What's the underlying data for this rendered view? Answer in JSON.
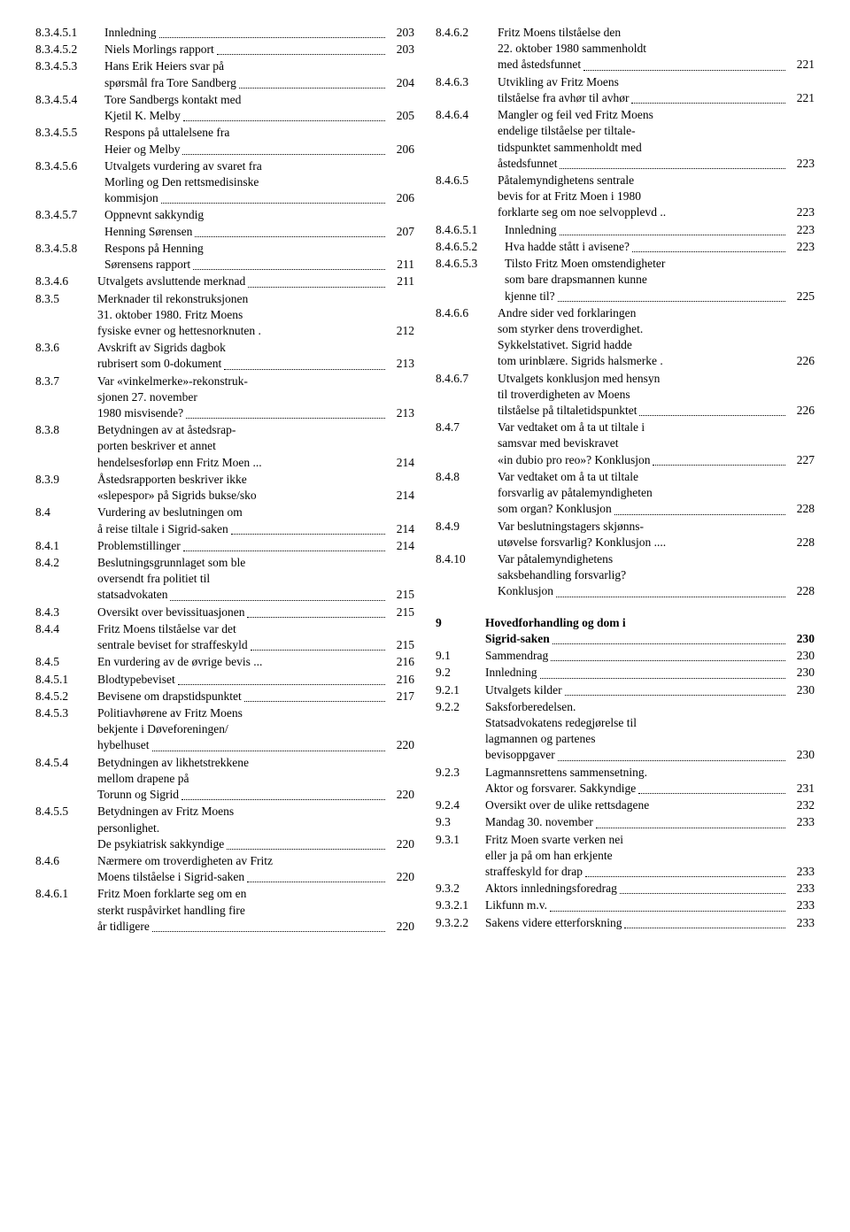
{
  "left": [
    {
      "num": "8.3.4.5.1",
      "lines": [
        {
          "t": "Innledning",
          "dots": true
        }
      ],
      "page": "203",
      "wide": true
    },
    {
      "num": "8.3.4.5.2",
      "lines": [
        {
          "t": "Niels Morlings rapport",
          "dots": true
        }
      ],
      "page": "203",
      "wide": true
    },
    {
      "num": "8.3.4.5.3",
      "lines": [
        {
          "t": "Hans Erik Heiers svar på",
          "dots": false
        },
        {
          "t": "spørsmål fra Tore Sandberg",
          "dots": true
        }
      ],
      "page": "204",
      "wide": true
    },
    {
      "num": "8.3.4.5.4",
      "lines": [
        {
          "t": "Tore Sandbergs kontakt med",
          "dots": false
        },
        {
          "t": "Kjetil K. Melby",
          "dots": true
        }
      ],
      "page": "205",
      "wide": true
    },
    {
      "num": "8.3.4.5.5",
      "lines": [
        {
          "t": "Respons på uttalelsene fra",
          "dots": false
        },
        {
          "t": "Heier og Melby",
          "dots": true
        }
      ],
      "page": "206",
      "wide": true
    },
    {
      "num": "8.3.4.5.6",
      "lines": [
        {
          "t": "Utvalgets vurdering av svaret fra",
          "dots": false
        },
        {
          "t": "Morling og Den rettsmedisinske",
          "dots": false
        },
        {
          "t": "kommisjon",
          "dots": true
        }
      ],
      "page": "206",
      "wide": true
    },
    {
      "num": "8.3.4.5.7",
      "lines": [
        {
          "t": "Oppnevnt sakkyndig",
          "dots": false
        },
        {
          "t": "Henning Sørensen",
          "dots": true
        }
      ],
      "page": "207",
      "wide": true
    },
    {
      "num": "8.3.4.5.8",
      "lines": [
        {
          "t": "Respons på Henning",
          "dots": false
        },
        {
          "t": "Sørensens rapport",
          "dots": true
        }
      ],
      "page": "211",
      "wide": true
    },
    {
      "num": "8.3.4.6",
      "lines": [
        {
          "t": "Utvalgets avsluttende merknad",
          "dots": true
        }
      ],
      "page": "211"
    },
    {
      "num": "8.3.5",
      "lines": [
        {
          "t": "Merknader til rekonstruksjonen",
          "dots": false
        },
        {
          "t": "31. oktober 1980. Fritz Moens",
          "dots": false
        },
        {
          "t": "fysiske evner og hettesnorknuten .",
          "dots": false
        }
      ],
      "page": "212"
    },
    {
      "num": "8.3.6",
      "lines": [
        {
          "t": "Avskrift av Sigrids dagbok",
          "dots": false
        },
        {
          "t": "rubrisert som 0-dokument",
          "dots": true
        }
      ],
      "page": "213"
    },
    {
      "num": "8.3.7",
      "lines": [
        {
          "t": "Var «vinkelmerke»-rekonstruk-",
          "dots": false
        },
        {
          "t": "sjonen 27. november",
          "dots": false
        },
        {
          "t": "1980 misvisende?",
          "dots": true
        }
      ],
      "page": "213"
    },
    {
      "num": "8.3.8",
      "lines": [
        {
          "t": "Betydningen av at åstedsrap-",
          "dots": false
        },
        {
          "t": "porten beskriver et annet",
          "dots": false
        },
        {
          "t": "hendelsesforløp enn Fritz Moen ...",
          "dots": false
        }
      ],
      "page": "214"
    },
    {
      "num": "8.3.9",
      "lines": [
        {
          "t": "Åstedsrapporten beskriver ikke",
          "dots": false
        },
        {
          "t": "«slepespor» på Sigrids bukse/sko",
          "dots": false
        }
      ],
      "page": "214"
    },
    {
      "num": "8.4",
      "lines": [
        {
          "t": "Vurdering av beslutningen om",
          "dots": false
        },
        {
          "t": "å reise tiltale i Sigrid-saken",
          "dots": true
        }
      ],
      "page": "214"
    },
    {
      "num": "8.4.1",
      "lines": [
        {
          "t": "Problemstillinger",
          "dots": true
        }
      ],
      "page": "214"
    },
    {
      "num": "8.4.2",
      "lines": [
        {
          "t": "Beslutningsgrunnlaget som ble",
          "dots": false
        },
        {
          "t": "oversendt fra politiet til",
          "dots": false
        },
        {
          "t": "statsadvokaten",
          "dots": true
        }
      ],
      "page": "215"
    },
    {
      "num": "8.4.3",
      "lines": [
        {
          "t": "Oversikt over bevissituasjonen",
          "dots": true
        }
      ],
      "page": "215"
    },
    {
      "num": "8.4.4",
      "lines": [
        {
          "t": "Fritz Moens tilståelse var det",
          "dots": false
        },
        {
          "t": "sentrale beviset for straffeskyld",
          "dots": true
        }
      ],
      "page": "215"
    },
    {
      "num": "8.4.5",
      "lines": [
        {
          "t": "En vurdering av de øvrige bevis  ...",
          "dots": false
        }
      ],
      "page": "216"
    },
    {
      "num": "8.4.5.1",
      "lines": [
        {
          "t": "Blodtypebeviset",
          "dots": true
        }
      ],
      "page": "216"
    },
    {
      "num": "8.4.5.2",
      "lines": [
        {
          "t": "Bevisene om drapstidspunktet",
          "dots": true
        }
      ],
      "page": "217"
    },
    {
      "num": "8.4.5.3",
      "lines": [
        {
          "t": "Politiavhørene av Fritz Moens",
          "dots": false
        },
        {
          "t": "bekjente i Døveforeningen/",
          "dots": false
        },
        {
          "t": "hybelhuset",
          "dots": true
        }
      ],
      "page": "220"
    },
    {
      "num": "8.4.5.4",
      "lines": [
        {
          "t": "Betydningen av likhetstrekkene",
          "dots": false
        },
        {
          "t": "mellom drapene på",
          "dots": false
        },
        {
          "t": "Torunn og Sigrid",
          "dots": true
        }
      ],
      "page": "220"
    },
    {
      "num": "8.4.5.5",
      "lines": [
        {
          "t": "Betydningen av Fritz Moens",
          "dots": false
        },
        {
          "t": "personlighet.",
          "dots": false
        },
        {
          "t": "De psykiatrisk sakkyndige",
          "dots": true
        }
      ],
      "page": "220"
    },
    {
      "num": "8.4.6",
      "lines": [
        {
          "t": "Nærmere om troverdigheten av Fritz",
          "dots": false
        },
        {
          "t": "Moens tilståelse i Sigrid-saken",
          "dots": true
        }
      ],
      "page": "220"
    },
    {
      "num": "8.4.6.1",
      "lines": [
        {
          "t": "Fritz Moen forklarte seg om en",
          "dots": false
        },
        {
          "t": "sterkt ruspåvirket handling fire",
          "dots": false
        },
        {
          "t": "år tidligere",
          "dots": true
        }
      ],
      "page": "220"
    }
  ],
  "right": [
    {
      "num": "8.4.6.2",
      "lines": [
        {
          "t": "Fritz Moens tilståelse den",
          "dots": false
        },
        {
          "t": "22. oktober 1980 sammenholdt",
          "dots": false
        },
        {
          "t": "med åstedsfunnet",
          "dots": true
        }
      ],
      "page": "221"
    },
    {
      "num": "8.4.6.3",
      "lines": [
        {
          "t": "Utvikling av Fritz Moens",
          "dots": false
        },
        {
          "t": "tilståelse fra avhør til avhør",
          "dots": true
        }
      ],
      "page": "221"
    },
    {
      "num": "8.4.6.4",
      "lines": [
        {
          "t": "Mangler og feil ved Fritz Moens",
          "dots": false
        },
        {
          "t": "endelige tilståelse per tiltale-",
          "dots": false
        },
        {
          "t": "tidspunktet sammenholdt med",
          "dots": false
        },
        {
          "t": "åstedsfunnet",
          "dots": true
        }
      ],
      "page": "223"
    },
    {
      "num": "8.4.6.5",
      "lines": [
        {
          "t": "Påtalemyndighetens sentrale",
          "dots": false
        },
        {
          "t": "bevis for at Fritz Moen i 1980",
          "dots": false
        },
        {
          "t": "forklarte seg om noe selvopplevd  ..",
          "dots": false
        }
      ],
      "page": "223"
    },
    {
      "num": "8.4.6.5.1",
      "lines": [
        {
          "t": "Innledning",
          "dots": true
        }
      ],
      "page": "223",
      "wide": true
    },
    {
      "num": "8.4.6.5.2",
      "lines": [
        {
          "t": "Hva hadde stått i avisene?",
          "dots": true
        }
      ],
      "page": "223",
      "wide": true
    },
    {
      "num": "8.4.6.5.3",
      "lines": [
        {
          "t": "Tilsto Fritz Moen omstendigheter",
          "dots": false
        },
        {
          "t": "som bare drapsmannen kunne",
          "dots": false
        },
        {
          "t": "kjenne til?",
          "dots": true
        }
      ],
      "page": "225",
      "wide": true
    },
    {
      "num": "8.4.6.6",
      "lines": [
        {
          "t": "Andre sider ved forklaringen",
          "dots": false
        },
        {
          "t": "som styrker dens troverdighet.",
          "dots": false
        },
        {
          "t": "Sykkelstativet. Sigrid hadde",
          "dots": false
        },
        {
          "t": "tom urinblære. Sigrids halsmerke .",
          "dots": false
        }
      ],
      "page": "226"
    },
    {
      "num": "8.4.6.7",
      "lines": [
        {
          "t": "Utvalgets konklusjon med hensyn",
          "dots": false
        },
        {
          "t": "til troverdigheten av Moens",
          "dots": false
        },
        {
          "t": "tilståelse på tiltaletidspunktet",
          "dots": true
        }
      ],
      "page": "226"
    },
    {
      "num": "8.4.7",
      "lines": [
        {
          "t": "Var vedtaket om å ta ut tiltale i",
          "dots": false
        },
        {
          "t": "samsvar med beviskravet",
          "dots": false
        },
        {
          "t": "«in dubio pro reo»? Konklusjon",
          "dots": true
        }
      ],
      "page": "227"
    },
    {
      "num": "8.4.8",
      "lines": [
        {
          "t": "Var vedtaket om å ta ut tiltale",
          "dots": false
        },
        {
          "t": "forsvarlig av påtalemyndigheten",
          "dots": false
        },
        {
          "t": "som organ? Konklusjon",
          "dots": true
        }
      ],
      "page": "228"
    },
    {
      "num": "8.4.9",
      "lines": [
        {
          "t": "Var beslutningstagers skjønns-",
          "dots": false
        },
        {
          "t": "utøvelse forsvarlig? Konklusjon  ....",
          "dots": false
        }
      ],
      "page": "228"
    },
    {
      "num": "8.4.10",
      "lines": [
        {
          "t": "Var påtalemyndighetens",
          "dots": false
        },
        {
          "t": "saksbehandling forsvarlig?",
          "dots": false
        },
        {
          "t": "Konklusjon",
          "dots": true
        }
      ],
      "page": "228"
    },
    {
      "gap": true
    },
    {
      "num": "9",
      "lines": [
        {
          "t": "Hovedforhandling og dom i",
          "dots": false
        },
        {
          "t": "Sigrid-saken",
          "dots": true
        }
      ],
      "page": "230",
      "bold": true,
      "short": true
    },
    {
      "num": "9.1",
      "lines": [
        {
          "t": "Sammendrag",
          "dots": true
        }
      ],
      "page": "230",
      "short": true
    },
    {
      "num": "9.2",
      "lines": [
        {
          "t": "Innledning",
          "dots": true
        }
      ],
      "page": "230",
      "short": true
    },
    {
      "num": "9.2.1",
      "lines": [
        {
          "t": "Utvalgets kilder",
          "dots": true
        }
      ],
      "page": "230",
      "short": true
    },
    {
      "num": "9.2.2",
      "lines": [
        {
          "t": "Saksforberedelsen.",
          "dots": false
        },
        {
          "t": "Statsadvokatens redegjørelse til",
          "dots": false
        },
        {
          "t": "lagmannen og partenes",
          "dots": false
        },
        {
          "t": "bevisoppgaver",
          "dots": true
        }
      ],
      "page": "230",
      "short": true
    },
    {
      "num": "9.2.3",
      "lines": [
        {
          "t": "Lagmannsrettens sammensetning.",
          "dots": false
        },
        {
          "t": "Aktor og forsvarer. Sakkyndige",
          "dots": true
        }
      ],
      "page": "231",
      "short": true
    },
    {
      "num": "9.2.4",
      "lines": [
        {
          "t": "Oversikt over de ulike rettsdagene",
          "dots": false
        }
      ],
      "page": "232",
      "short": true
    },
    {
      "num": "9.3",
      "lines": [
        {
          "t": "Mandag 30. november",
          "dots": true
        }
      ],
      "page": "233",
      "short": true
    },
    {
      "num": "9.3.1",
      "lines": [
        {
          "t": "Fritz Moen svarte verken nei",
          "dots": false
        },
        {
          "t": "eller ja på om han erkjente",
          "dots": false
        },
        {
          "t": "straffeskyld for drap",
          "dots": true
        }
      ],
      "page": "233",
      "short": true
    },
    {
      "num": "9.3.2",
      "lines": [
        {
          "t": "Aktors innledningsforedrag",
          "dots": true
        }
      ],
      "page": "233",
      "short": true
    },
    {
      "num": "9.3.2.1",
      "lines": [
        {
          "t": "Likfunn m.v.",
          "dots": true
        }
      ],
      "page": "233",
      "short": true
    },
    {
      "num": "9.3.2.2",
      "lines": [
        {
          "t": "Sakens videre etterforskning",
          "dots": true
        }
      ],
      "page": "233",
      "short": true
    }
  ]
}
